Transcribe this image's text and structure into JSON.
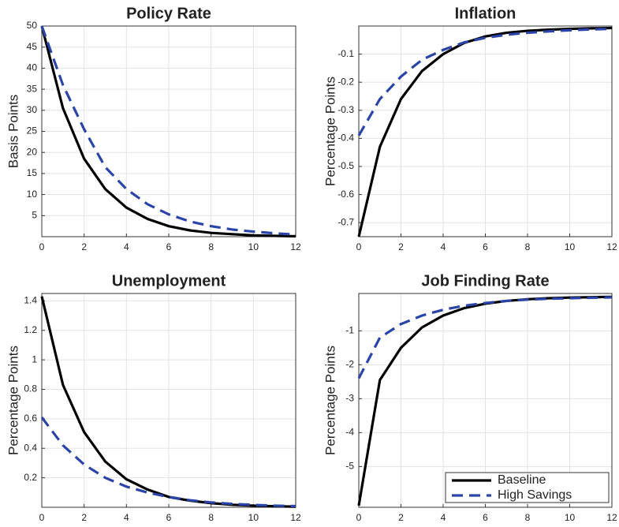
{
  "chart_data": [
    {
      "type": "line",
      "title": "Policy Rate",
      "ylabel": "Basis Points",
      "x": [
        0,
        1,
        2,
        3,
        4,
        5,
        6,
        7,
        8,
        9,
        10,
        11,
        12
      ],
      "series": [
        {
          "color": "#000000",
          "linestyle": "solid",
          "values": [
            50,
            30.5,
            18.5,
            11.3,
            6.9,
            4.2,
            2.5,
            1.5,
            0.9,
            0.6,
            0.3,
            0.2,
            0.1
          ]
        },
        {
          "color": "#2b44a8",
          "linestyle": "dashed",
          "values": [
            50,
            36,
            25.5,
            16.5,
            11.3,
            7.7,
            5.3,
            3.6,
            2.5,
            1.7,
            1.2,
            0.8,
            0.5
          ]
        }
      ],
      "xlim": [
        0,
        12
      ],
      "xticks": [
        0,
        2,
        4,
        6,
        8,
        10,
        12
      ],
      "ylim": [
        0,
        50
      ],
      "yticks": [
        5,
        10,
        15,
        20,
        25,
        30,
        35,
        40,
        45,
        50
      ],
      "grid": true
    },
    {
      "type": "line",
      "title": "Inflation",
      "ylabel": "Percentage Points",
      "x": [
        0,
        1,
        2,
        3,
        4,
        5,
        6,
        7,
        8,
        9,
        10,
        11,
        12
      ],
      "series": [
        {
          "color": "#000000",
          "linestyle": "solid",
          "values": [
            -0.75,
            -0.43,
            -0.26,
            -0.16,
            -0.1,
            -0.06,
            -0.037,
            -0.024,
            -0.017,
            -0.013,
            -0.01,
            -0.008,
            -0.007
          ]
        },
        {
          "color": "#2b44a8",
          "linestyle": "dashed",
          "values": [
            -0.39,
            -0.26,
            -0.18,
            -0.12,
            -0.085,
            -0.058,
            -0.042,
            -0.031,
            -0.024,
            -0.019,
            -0.015,
            -0.012,
            -0.01
          ]
        }
      ],
      "xlim": [
        0,
        12
      ],
      "xticks": [
        0,
        2,
        4,
        6,
        8,
        10,
        12
      ],
      "ylim": [
        -0.75,
        0
      ],
      "yticks": [
        -0.7,
        -0.6,
        -0.5,
        -0.4,
        -0.3,
        -0.2,
        -0.1
      ],
      "grid": true
    },
    {
      "type": "line",
      "title": "Unemployment",
      "ylabel": "Percentage Points",
      "x": [
        0,
        1,
        2,
        3,
        4,
        5,
        6,
        7,
        8,
        9,
        10,
        11,
        12
      ],
      "series": [
        {
          "color": "#000000",
          "linestyle": "solid",
          "values": [
            1.43,
            0.83,
            0.51,
            0.31,
            0.19,
            0.12,
            0.07,
            0.045,
            0.028,
            0.017,
            0.011,
            0.007,
            0.004
          ]
        },
        {
          "color": "#2b44a8",
          "linestyle": "dashed",
          "values": [
            0.61,
            0.42,
            0.29,
            0.2,
            0.14,
            0.1,
            0.07,
            0.048,
            0.033,
            0.023,
            0.016,
            0.011,
            0.008
          ]
        }
      ],
      "xlim": [
        0,
        12
      ],
      "xticks": [
        0,
        2,
        4,
        6,
        8,
        10,
        12
      ],
      "ylim": [
        0,
        1.45
      ],
      "yticks": [
        0.2,
        0.4,
        0.6,
        0.8,
        1,
        1.2,
        1.4
      ],
      "grid": true
    },
    {
      "type": "line",
      "title": "Job Finding Rate",
      "ylabel": "Percentage Points",
      "x": [
        0,
        1,
        2,
        3,
        4,
        5,
        6,
        7,
        8,
        9,
        10,
        11,
        12
      ],
      "series": [
        {
          "name": "Baseline",
          "color": "#000000",
          "linestyle": "solid",
          "values": [
            -6.15,
            -2.45,
            -1.5,
            -0.9,
            -0.55,
            -0.33,
            -0.2,
            -0.12,
            -0.07,
            -0.04,
            -0.02,
            -0.01,
            0
          ]
        },
        {
          "name": "High Savings",
          "color": "#2b44a8",
          "linestyle": "dashed",
          "values": [
            -2.4,
            -1.2,
            -0.8,
            -0.55,
            -0.38,
            -0.26,
            -0.18,
            -0.12,
            -0.08,
            -0.055,
            -0.04,
            -0.025,
            -0.015
          ]
        }
      ],
      "xlim": [
        0,
        12
      ],
      "xticks": [
        0,
        2,
        4,
        6,
        8,
        10,
        12
      ],
      "ylim": [
        -6.2,
        0.1
      ],
      "yticks": [
        -5,
        -4,
        -3,
        -2,
        -1
      ],
      "grid": true,
      "legend": "lower right"
    }
  ]
}
